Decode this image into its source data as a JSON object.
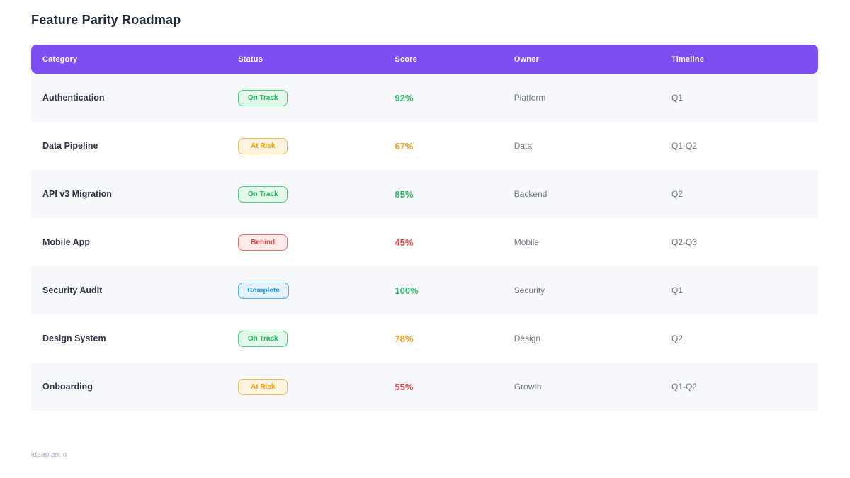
{
  "page": {
    "title": "Feature Parity Roadmap",
    "footer": "ideaplan.io"
  },
  "colors": {
    "header_bg": "#7d4ff2",
    "score_green": "#2abd68",
    "score_orange": "#f5a11d",
    "score_red": "#e84a4a",
    "badge_on_track_text": "#21bd5d",
    "badge_at_risk_text": "#f59c0c",
    "badge_behind_text": "#e64c4c",
    "badge_complete_text": "#1d9ce2"
  },
  "table": {
    "columns": [
      "Category",
      "Status",
      "Score",
      "Owner",
      "Timeline"
    ],
    "rows": [
      {
        "category": "Authentication",
        "status": "On Track",
        "status_variant": "on-track",
        "score": "92%",
        "score_variant": "green",
        "owner": "Platform",
        "timeline": "Q1"
      },
      {
        "category": "Data Pipeline",
        "status": "At Risk",
        "status_variant": "at-risk",
        "score": "67%",
        "score_variant": "orange",
        "owner": "Data",
        "timeline": "Q1-Q2"
      },
      {
        "category": "API v3 Migration",
        "status": "On Track",
        "status_variant": "on-track",
        "score": "85%",
        "score_variant": "green",
        "owner": "Backend",
        "timeline": "Q2"
      },
      {
        "category": "Mobile App",
        "status": "Behind",
        "status_variant": "behind",
        "score": "45%",
        "score_variant": "red",
        "owner": "Mobile",
        "timeline": "Q2-Q3"
      },
      {
        "category": "Security Audit",
        "status": "Complete",
        "status_variant": "complete",
        "score": "100%",
        "score_variant": "green",
        "owner": "Security",
        "timeline": "Q1"
      },
      {
        "category": "Design System",
        "status": "On Track",
        "status_variant": "on-track",
        "score": "78%",
        "score_variant": "orange",
        "owner": "Design",
        "timeline": "Q2"
      },
      {
        "category": "Onboarding",
        "status": "At Risk",
        "status_variant": "at-risk",
        "score": "55%",
        "score_variant": "red",
        "owner": "Growth",
        "timeline": "Q1-Q2"
      }
    ]
  }
}
